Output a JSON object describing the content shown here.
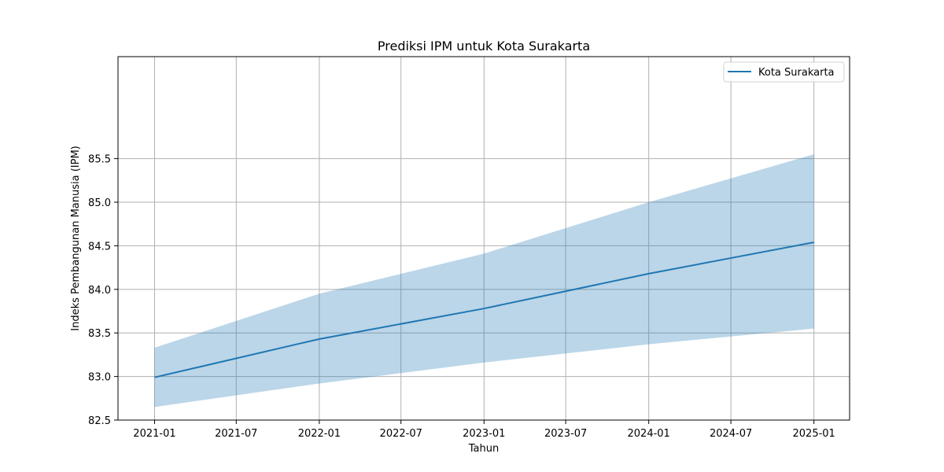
{
  "chart_data": {
    "type": "line",
    "title": "Prediksi IPM untuk Kota Surakarta",
    "xlabel": "Tahun",
    "ylabel": "Indeks Pembangunan Manusia (IPM)",
    "x_ticks": [
      "2021-01",
      "2021-07",
      "2022-01",
      "2022-07",
      "2023-01",
      "2023-07",
      "2024-01",
      "2024-07",
      "2025-01"
    ],
    "y_ticks": [
      "82.5",
      "83.0",
      "83.5",
      "84.0",
      "84.5",
      "85.0",
      "85.5"
    ],
    "ylim": [
      82.5,
      86.67
    ],
    "xlim": [
      "2020-10-12",
      "2025-03-21"
    ],
    "grid": true,
    "legend_position": "top-right",
    "series": [
      {
        "name": "Kota Surakarta",
        "color": "#1f77b4",
        "x": [
          "2021-01-01",
          "2022-01-01",
          "2023-01-01",
          "2024-01-01",
          "2025-01-01"
        ],
        "values": [
          82.99,
          83.43,
          83.78,
          84.18,
          84.54
        ],
        "lower": [
          82.65,
          82.92,
          83.16,
          83.37,
          83.55
        ],
        "upper": [
          83.33,
          83.95,
          84.41,
          85.0,
          85.55
        ]
      }
    ],
    "band_color": "#1f77b4"
  }
}
